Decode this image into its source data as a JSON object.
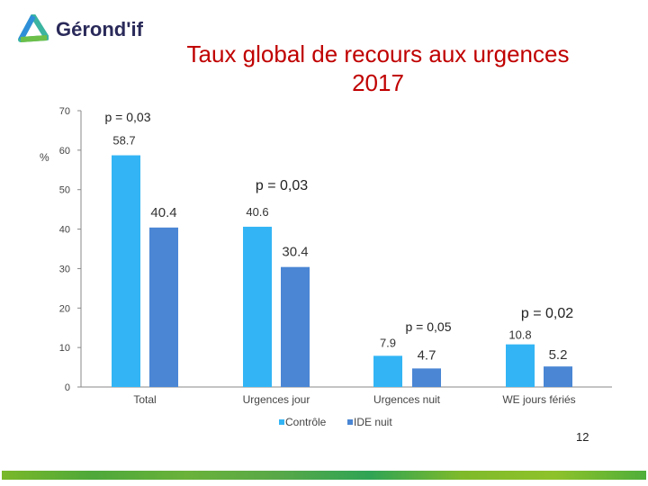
{
  "logo": {
    "text": "Gérond'if"
  },
  "page_number": "12",
  "colors": {
    "controle": "#33b5f5",
    "ide": "#4a86d4",
    "title": "#c00000"
  },
  "chart_data": {
    "type": "bar",
    "title": "Taux global de recours aux urgences 2017",
    "title_lines": [
      "Taux global de recours aux urgences",
      "2017"
    ],
    "ylabel": "%",
    "ylim": [
      0,
      70
    ],
    "yticks": [
      0,
      10,
      20,
      30,
      40,
      50,
      60,
      70
    ],
    "categories": [
      "Total",
      "Urgences jour",
      "Urgences nuit",
      "WE jours fériés"
    ],
    "series": [
      {
        "name": "Contrôle",
        "values": [
          58.7,
          40.6,
          7.9,
          10.8
        ],
        "labels": [
          "58.7",
          "40.6",
          "7.9",
          "10.8"
        ]
      },
      {
        "name": "IDE nuit",
        "values": [
          40.4,
          30.4,
          4.7,
          5.2
        ],
        "labels": [
          "40.4",
          "30.4",
          "4.7",
          "5.2"
        ]
      }
    ],
    "annotations": [
      "p = 0,03",
      "p = 0,03",
      "p = 0,05",
      "p = 0,02"
    ],
    "legend": "bottom"
  }
}
